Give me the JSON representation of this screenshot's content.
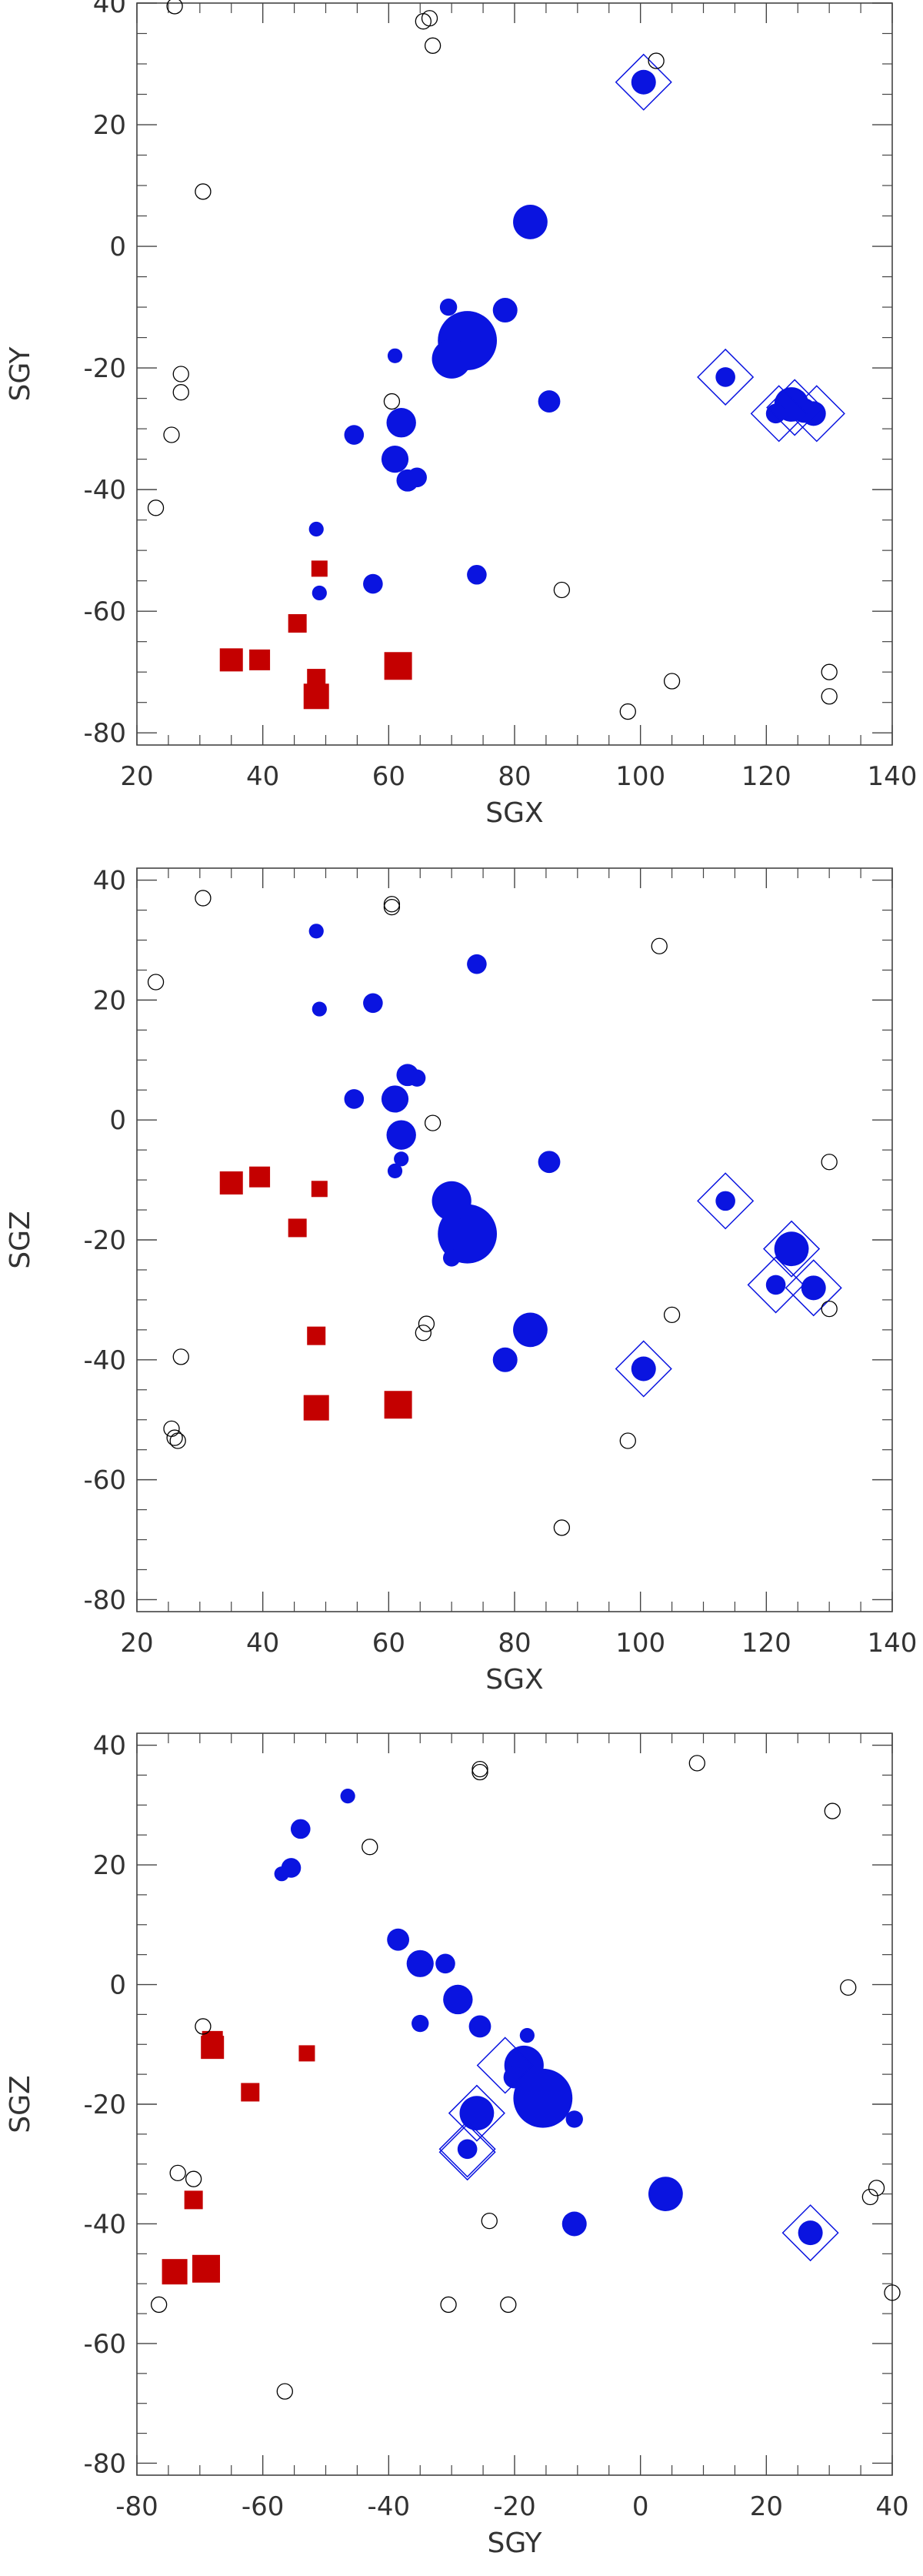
{
  "colors": {
    "blue": "#0a14e0",
    "red": "#c40000",
    "open": "#000000",
    "axis": "#444444"
  },
  "marker_types": {
    "filled_circle": "blue",
    "square": "red",
    "open_circle": "open",
    "diamond_outline": "blue"
  },
  "chart_data": [
    {
      "type": "scatter",
      "xlabel": "SGX",
      "ylabel": "SGY",
      "xlim": [
        20,
        140
      ],
      "ylim": [
        -82,
        40
      ],
      "xticks": [
        20,
        40,
        60,
        80,
        100,
        120,
        140
      ],
      "yticks": [
        -80,
        -60,
        -40,
        -20,
        0,
        20,
        40
      ],
      "xtick_labels": [
        "20",
        "40",
        "60",
        "80",
        "100",
        "120",
        "140"
      ],
      "ytick_labels": [
        "-80",
        "-60",
        "-40",
        "-20",
        "0",
        "20",
        "40"
      ],
      "grid": false,
      "points": [
        {
          "x": 72.5,
          "y": -15.5,
          "s": 2.4,
          "m": "filled_circle"
        },
        {
          "x": 70,
          "y": -18.5,
          "s": 1.6,
          "m": "filled_circle"
        },
        {
          "x": 82.5,
          "y": 4,
          "s": 1.4,
          "m": "filled_circle"
        },
        {
          "x": 78.5,
          "y": -10.5,
          "s": 1.0,
          "m": "filled_circle"
        },
        {
          "x": 69.5,
          "y": -10,
          "s": 0.7,
          "m": "filled_circle"
        },
        {
          "x": 62,
          "y": -29,
          "s": 1.2,
          "m": "filled_circle"
        },
        {
          "x": 61,
          "y": -35,
          "s": 1.1,
          "m": "filled_circle"
        },
        {
          "x": 63,
          "y": -38.5,
          "s": 0.9,
          "m": "filled_circle"
        },
        {
          "x": 64.5,
          "y": -38,
          "s": 0.8,
          "m": "filled_circle"
        },
        {
          "x": 61,
          "y": -18,
          "s": 0.6,
          "m": "filled_circle"
        },
        {
          "x": 54.5,
          "y": -31,
          "s": 0.8,
          "m": "filled_circle"
        },
        {
          "x": 85.5,
          "y": -25.5,
          "s": 0.9,
          "m": "filled_circle"
        },
        {
          "x": 74,
          "y": -54,
          "s": 0.8,
          "m": "filled_circle"
        },
        {
          "x": 57.5,
          "y": -55.5,
          "s": 0.8,
          "m": "filled_circle"
        },
        {
          "x": 48.5,
          "y": -46.5,
          "s": 0.6,
          "m": "filled_circle"
        },
        {
          "x": 49,
          "y": -57,
          "s": 0.6,
          "m": "filled_circle"
        },
        {
          "x": 100.5,
          "y": 27,
          "s": 1.0,
          "m": "filled_circle"
        },
        {
          "x": 113.5,
          "y": -21.5,
          "s": 0.8,
          "m": "filled_circle"
        },
        {
          "x": 124,
          "y": -26,
          "s": 1.4,
          "m": "filled_circle"
        },
        {
          "x": 121.5,
          "y": -27.5,
          "s": 0.8,
          "m": "filled_circle"
        },
        {
          "x": 126,
          "y": -27,
          "s": 1.0,
          "m": "filled_circle"
        },
        {
          "x": 127.5,
          "y": -27.5,
          "s": 1.0,
          "m": "filled_circle"
        },
        {
          "x": 100.5,
          "y": 27,
          "s": 1.0,
          "m": "diamond_outline"
        },
        {
          "x": 113.5,
          "y": -21.5,
          "s": 1.0,
          "m": "diamond_outline"
        },
        {
          "x": 122,
          "y": -27.5,
          "s": 1.0,
          "m": "diamond_outline"
        },
        {
          "x": 124.5,
          "y": -26.5,
          "s": 1.0,
          "m": "diamond_outline"
        },
        {
          "x": 128,
          "y": -27.5,
          "s": 1.0,
          "m": "diamond_outline"
        },
        {
          "x": 35,
          "y": -68,
          "s": 1.0,
          "m": "square"
        },
        {
          "x": 39.5,
          "y": -68,
          "s": 0.9,
          "m": "square"
        },
        {
          "x": 48.5,
          "y": -74,
          "s": 1.1,
          "m": "square"
        },
        {
          "x": 48.5,
          "y": -71,
          "s": 0.8,
          "m": "square"
        },
        {
          "x": 61.5,
          "y": -69,
          "s": 1.2,
          "m": "square"
        },
        {
          "x": 45.5,
          "y": -62,
          "s": 0.8,
          "m": "square"
        },
        {
          "x": 49,
          "y": -53,
          "s": 0.7,
          "m": "square"
        },
        {
          "x": 26,
          "y": 39.5,
          "s": 0.6,
          "m": "open_circle"
        },
        {
          "x": 65.5,
          "y": 37,
          "s": 0.6,
          "m": "open_circle"
        },
        {
          "x": 66.5,
          "y": 37.5,
          "s": 0.6,
          "m": "open_circle"
        },
        {
          "x": 67,
          "y": 33,
          "s": 0.6,
          "m": "open_circle"
        },
        {
          "x": 30.5,
          "y": 9,
          "s": 0.6,
          "m": "open_circle"
        },
        {
          "x": 102.5,
          "y": 30.5,
          "s": 0.6,
          "m": "open_circle"
        },
        {
          "x": 27,
          "y": -21,
          "s": 0.6,
          "m": "open_circle"
        },
        {
          "x": 27,
          "y": -24,
          "s": 0.6,
          "m": "open_circle"
        },
        {
          "x": 25.5,
          "y": -31,
          "s": 0.6,
          "m": "open_circle"
        },
        {
          "x": 23,
          "y": -43,
          "s": 0.6,
          "m": "open_circle"
        },
        {
          "x": 60.5,
          "y": -25.5,
          "s": 0.6,
          "m": "open_circle"
        },
        {
          "x": 87.5,
          "y": -56.5,
          "s": 0.6,
          "m": "open_circle"
        },
        {
          "x": 105,
          "y": -71.5,
          "s": 0.6,
          "m": "open_circle"
        },
        {
          "x": 98,
          "y": -76.5,
          "s": 0.6,
          "m": "open_circle"
        },
        {
          "x": 130,
          "y": -70,
          "s": 0.6,
          "m": "open_circle"
        },
        {
          "x": 130,
          "y": -74,
          "s": 0.6,
          "m": "open_circle"
        }
      ]
    },
    {
      "type": "scatter",
      "xlabel": "SGX",
      "ylabel": "SGZ",
      "xlim": [
        20,
        140
      ],
      "ylim": [
        -82,
        42
      ],
      "xticks": [
        20,
        40,
        60,
        80,
        100,
        120,
        140
      ],
      "yticks": [
        -80,
        -60,
        -40,
        -20,
        0,
        20,
        40
      ],
      "xtick_labels": [
        "20",
        "40",
        "60",
        "80",
        "100",
        "120",
        "140"
      ],
      "ytick_labels": [
        "-80",
        "-60",
        "-40",
        "-20",
        "0",
        "20",
        "40"
      ],
      "grid": false,
      "points": [
        {
          "x": 72.5,
          "y": -19,
          "s": 2.4,
          "m": "filled_circle"
        },
        {
          "x": 70,
          "y": -13.5,
          "s": 1.6,
          "m": "filled_circle"
        },
        {
          "x": 70,
          "y": -23,
          "s": 0.7,
          "m": "filled_circle"
        },
        {
          "x": 82.5,
          "y": -35,
          "s": 1.4,
          "m": "filled_circle"
        },
        {
          "x": 78.5,
          "y": -40,
          "s": 1.0,
          "m": "filled_circle"
        },
        {
          "x": 62,
          "y": -2.5,
          "s": 1.2,
          "m": "filled_circle"
        },
        {
          "x": 61,
          "y": 3.5,
          "s": 1.1,
          "m": "filled_circle"
        },
        {
          "x": 63,
          "y": 7.5,
          "s": 0.9,
          "m": "filled_circle"
        },
        {
          "x": 64.5,
          "y": 7,
          "s": 0.7,
          "m": "filled_circle"
        },
        {
          "x": 61,
          "y": -8.5,
          "s": 0.6,
          "m": "filled_circle"
        },
        {
          "x": 62,
          "y": -6.5,
          "s": 0.6,
          "m": "filled_circle"
        },
        {
          "x": 54.5,
          "y": 3.5,
          "s": 0.8,
          "m": "filled_circle"
        },
        {
          "x": 85.5,
          "y": -7,
          "s": 0.9,
          "m": "filled_circle"
        },
        {
          "x": 74,
          "y": 26,
          "s": 0.8,
          "m": "filled_circle"
        },
        {
          "x": 57.5,
          "y": 19.5,
          "s": 0.8,
          "m": "filled_circle"
        },
        {
          "x": 48.5,
          "y": 31.5,
          "s": 0.6,
          "m": "filled_circle"
        },
        {
          "x": 49,
          "y": 18.5,
          "s": 0.6,
          "m": "filled_circle"
        },
        {
          "x": 100.5,
          "y": -41.5,
          "s": 1.0,
          "m": "filled_circle"
        },
        {
          "x": 113.5,
          "y": -13.5,
          "s": 0.8,
          "m": "filled_circle"
        },
        {
          "x": 124,
          "y": -21.5,
          "s": 1.4,
          "m": "filled_circle"
        },
        {
          "x": 121.5,
          "y": -27.5,
          "s": 0.8,
          "m": "filled_circle"
        },
        {
          "x": 127.5,
          "y": -28,
          "s": 1.0,
          "m": "filled_circle"
        },
        {
          "x": 100.5,
          "y": -41.5,
          "s": 1.0,
          "m": "diamond_outline"
        },
        {
          "x": 113.5,
          "y": -13.5,
          "s": 1.0,
          "m": "diamond_outline"
        },
        {
          "x": 124,
          "y": -21.5,
          "s": 1.0,
          "m": "diamond_outline"
        },
        {
          "x": 121.5,
          "y": -27.5,
          "s": 1.0,
          "m": "diamond_outline"
        },
        {
          "x": 127.5,
          "y": -28,
          "s": 1.0,
          "m": "diamond_outline"
        },
        {
          "x": 35,
          "y": -10.5,
          "s": 1.0,
          "m": "square"
        },
        {
          "x": 39.5,
          "y": -9.5,
          "s": 0.9,
          "m": "square"
        },
        {
          "x": 49,
          "y": -11.5,
          "s": 0.7,
          "m": "square"
        },
        {
          "x": 45.5,
          "y": -18,
          "s": 0.8,
          "m": "square"
        },
        {
          "x": 48.5,
          "y": -36,
          "s": 0.8,
          "m": "square"
        },
        {
          "x": 48.5,
          "y": -48,
          "s": 1.1,
          "m": "square"
        },
        {
          "x": 61.5,
          "y": -47.5,
          "s": 1.2,
          "m": "square"
        },
        {
          "x": 23,
          "y": 23,
          "s": 0.6,
          "m": "open_circle"
        },
        {
          "x": 30.5,
          "y": 37,
          "s": 0.6,
          "m": "open_circle"
        },
        {
          "x": 60.5,
          "y": 35.5,
          "s": 0.6,
          "m": "open_circle"
        },
        {
          "x": 60.5,
          "y": 36,
          "s": 0.6,
          "m": "open_circle"
        },
        {
          "x": 103,
          "y": 29,
          "s": 0.6,
          "m": "open_circle"
        },
        {
          "x": 67,
          "y": -0.5,
          "s": 0.6,
          "m": "open_circle"
        },
        {
          "x": 130,
          "y": -7,
          "s": 0.6,
          "m": "open_circle"
        },
        {
          "x": 130,
          "y": -31.5,
          "s": 0.6,
          "m": "open_circle"
        },
        {
          "x": 105,
          "y": -32.5,
          "s": 0.6,
          "m": "open_circle"
        },
        {
          "x": 66,
          "y": -34,
          "s": 0.6,
          "m": "open_circle"
        },
        {
          "x": 65.5,
          "y": -35.5,
          "s": 0.6,
          "m": "open_circle"
        },
        {
          "x": 27,
          "y": -39.5,
          "s": 0.6,
          "m": "open_circle"
        },
        {
          "x": 25.5,
          "y": -51.5,
          "s": 0.6,
          "m": "open_circle"
        },
        {
          "x": 26,
          "y": -53,
          "s": 0.6,
          "m": "open_circle"
        },
        {
          "x": 26.5,
          "y": -53.5,
          "s": 0.6,
          "m": "open_circle"
        },
        {
          "x": 98,
          "y": -53.5,
          "s": 0.6,
          "m": "open_circle"
        },
        {
          "x": 87.5,
          "y": -68,
          "s": 0.6,
          "m": "open_circle"
        }
      ]
    },
    {
      "type": "scatter",
      "xlabel": "SGY",
      "ylabel": "SGZ",
      "xlim": [
        -80,
        40
      ],
      "ylim": [
        -82,
        42
      ],
      "xticks": [
        -80,
        -60,
        -40,
        -20,
        0,
        20,
        40
      ],
      "yticks": [
        -80,
        -60,
        -40,
        -20,
        0,
        20,
        40
      ],
      "xtick_labels": [
        "-80",
        "-60",
        "-40",
        "-20",
        "0",
        "20",
        "40"
      ],
      "ytick_labels": [
        "-80",
        "-60",
        "-40",
        "-20",
        "0",
        "20",
        "40"
      ],
      "grid": false,
      "points": [
        {
          "x": -15.5,
          "y": -19,
          "s": 2.4,
          "m": "filled_circle"
        },
        {
          "x": -18.5,
          "y": -13.5,
          "s": 1.6,
          "m": "filled_circle"
        },
        {
          "x": -20,
          "y": -15.5,
          "s": 0.9,
          "m": "filled_circle"
        },
        {
          "x": -18,
          "y": -8.5,
          "s": 0.6,
          "m": "filled_circle"
        },
        {
          "x": -10.5,
          "y": -22.5,
          "s": 0.7,
          "m": "filled_circle"
        },
        {
          "x": 4,
          "y": -35,
          "s": 1.4,
          "m": "filled_circle"
        },
        {
          "x": -10.5,
          "y": -40,
          "s": 1.0,
          "m": "filled_circle"
        },
        {
          "x": -29,
          "y": -2.5,
          "s": 1.2,
          "m": "filled_circle"
        },
        {
          "x": -35,
          "y": 3.5,
          "s": 1.1,
          "m": "filled_circle"
        },
        {
          "x": -38.5,
          "y": 7.5,
          "s": 0.9,
          "m": "filled_circle"
        },
        {
          "x": -31,
          "y": 3.5,
          "s": 0.8,
          "m": "filled_circle"
        },
        {
          "x": -35,
          "y": -6.5,
          "s": 0.7,
          "m": "filled_circle"
        },
        {
          "x": -25.5,
          "y": -7,
          "s": 0.9,
          "m": "filled_circle"
        },
        {
          "x": -54,
          "y": 26,
          "s": 0.8,
          "m": "filled_circle"
        },
        {
          "x": -55.5,
          "y": 19.5,
          "s": 0.8,
          "m": "filled_circle"
        },
        {
          "x": -57,
          "y": 18.5,
          "s": 0.6,
          "m": "filled_circle"
        },
        {
          "x": -46.5,
          "y": 31.5,
          "s": 0.6,
          "m": "filled_circle"
        },
        {
          "x": 27,
          "y": -41.5,
          "s": 1.0,
          "m": "filled_circle"
        },
        {
          "x": -26,
          "y": -21.5,
          "s": 1.4,
          "m": "filled_circle"
        },
        {
          "x": -27.5,
          "y": -27.5,
          "s": 0.8,
          "m": "filled_circle"
        },
        {
          "x": 27,
          "y": -41.5,
          "s": 1.0,
          "m": "diamond_outline"
        },
        {
          "x": -21.5,
          "y": -13.5,
          "s": 1.0,
          "m": "diamond_outline"
        },
        {
          "x": -26,
          "y": -21.5,
          "s": 1.0,
          "m": "diamond_outline"
        },
        {
          "x": -27.5,
          "y": -27.5,
          "s": 1.0,
          "m": "diamond_outline"
        },
        {
          "x": -27.5,
          "y": -28,
          "s": 1.0,
          "m": "diamond_outline"
        },
        {
          "x": -68,
          "y": -10.5,
          "s": 1.0,
          "m": "square"
        },
        {
          "x": -68,
          "y": -9.5,
          "s": 0.9,
          "m": "square"
        },
        {
          "x": -53,
          "y": -11.5,
          "s": 0.7,
          "m": "square"
        },
        {
          "x": -62,
          "y": -18,
          "s": 0.8,
          "m": "square"
        },
        {
          "x": -71,
          "y": -36,
          "s": 0.8,
          "m": "square"
        },
        {
          "x": -74,
          "y": -48,
          "s": 1.1,
          "m": "square"
        },
        {
          "x": -69,
          "y": -47.5,
          "s": 1.2,
          "m": "square"
        },
        {
          "x": -43,
          "y": 23,
          "s": 0.6,
          "m": "open_circle"
        },
        {
          "x": -25.5,
          "y": 35.5,
          "s": 0.6,
          "m": "open_circle"
        },
        {
          "x": -25.5,
          "y": 36,
          "s": 0.6,
          "m": "open_circle"
        },
        {
          "x": 9,
          "y": 37,
          "s": 0.6,
          "m": "open_circle"
        },
        {
          "x": 30.5,
          "y": 29,
          "s": 0.6,
          "m": "open_circle"
        },
        {
          "x": 33,
          "y": -0.5,
          "s": 0.6,
          "m": "open_circle"
        },
        {
          "x": -69.5,
          "y": -7,
          "s": 0.6,
          "m": "open_circle"
        },
        {
          "x": -73.5,
          "y": -31.5,
          "s": 0.6,
          "m": "open_circle"
        },
        {
          "x": -71,
          "y": -32.5,
          "s": 0.6,
          "m": "open_circle"
        },
        {
          "x": -24,
          "y": -39.5,
          "s": 0.6,
          "m": "open_circle"
        },
        {
          "x": 37.5,
          "y": -34,
          "s": 0.6,
          "m": "open_circle"
        },
        {
          "x": 36.5,
          "y": -35.5,
          "s": 0.6,
          "m": "open_circle"
        },
        {
          "x": -76.5,
          "y": -53.5,
          "s": 0.6,
          "m": "open_circle"
        },
        {
          "x": -30.5,
          "y": -53.5,
          "s": 0.6,
          "m": "open_circle"
        },
        {
          "x": -21,
          "y": -53.5,
          "s": 0.6,
          "m": "open_circle"
        },
        {
          "x": -56.5,
          "y": -68,
          "s": 0.6,
          "m": "open_circle"
        },
        {
          "x": 40,
          "y": -51.5,
          "s": 0.6,
          "m": "open_circle"
        }
      ]
    }
  ]
}
